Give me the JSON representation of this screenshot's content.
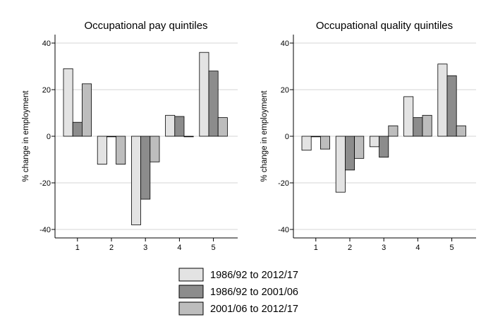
{
  "chart_data": [
    {
      "type": "bar",
      "title": "Occupational pay quintiles",
      "xlabel": "",
      "ylabel": "% change in employment",
      "ylim": [
        -45,
        45
      ],
      "yticks": [
        40,
        20,
        0,
        -20,
        -40
      ],
      "grid": true,
      "categories": [
        "1",
        "2",
        "3",
        "4",
        "5"
      ],
      "series": [
        {
          "name": "1986/92 to 2012/17",
          "values": [
            29,
            -12,
            -38,
            9,
            36
          ]
        },
        {
          "name": "1986/92 to 2001/06",
          "values": [
            6,
            0,
            -27,
            8.5,
            28
          ]
        },
        {
          "name": "2001/06 to 2012/17",
          "values": [
            22.5,
            -12,
            -11,
            0,
            8
          ]
        }
      ]
    },
    {
      "type": "bar",
      "title": "Occupational quality quintiles",
      "xlabel": "",
      "ylabel": "% change in employment",
      "ylim": [
        -45,
        45
      ],
      "yticks": [
        40,
        20,
        0,
        -20,
        -40
      ],
      "grid": true,
      "categories": [
        "1",
        "2",
        "3",
        "4",
        "5"
      ],
      "series": [
        {
          "name": "1986/92 to 2012/17",
          "values": [
            -6,
            -24,
            -4.5,
            17,
            31
          ]
        },
        {
          "name": "1986/92 to 2001/06",
          "values": [
            0,
            -14.5,
            -9,
            8,
            26
          ]
        },
        {
          "name": "2001/06 to 2012/17",
          "values": [
            -5.5,
            -9.5,
            4.5,
            9,
            4.5
          ]
        }
      ]
    }
  ],
  "legend": {
    "placement": "bottom-center",
    "items": [
      {
        "label": "1986/92 to 2012/17",
        "color": "#e3e3e3"
      },
      {
        "label": "1986/92 to 2001/06",
        "color": "#8c8c8c"
      },
      {
        "label": "2001/06 to 2012/17",
        "color": "#bdbdbd"
      }
    ]
  },
  "colors": {
    "series": [
      "#e3e3e3",
      "#8c8c8c",
      "#bdbdbd"
    ],
    "grid": "#d4d4d4",
    "axis": "#000000",
    "bar_outline": "#000000"
  }
}
